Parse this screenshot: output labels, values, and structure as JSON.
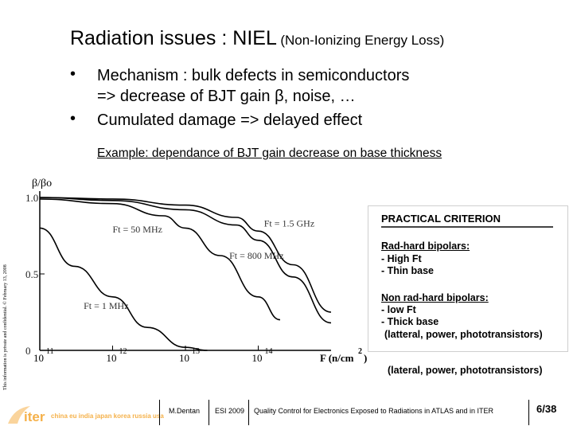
{
  "slide": {
    "title_main": "Radiation issues : NIEL",
    "title_sub": "(Non-Ionizing Energy Loss)",
    "bullets": [
      {
        "dot": "•",
        "lines": [
          "Mechanism : bulk defects in semiconductors",
          "=> decrease of BJT gain β, noise, …"
        ]
      },
      {
        "dot": "•",
        "lines": [
          "Cumulated damage => delayed effect"
        ]
      }
    ],
    "example_caption": "Example: dependance of BJT gain decrease on base thickness",
    "side_note": "This information is private and confidential. © February 13, 2008"
  },
  "chart_data": {
    "type": "line",
    "title": "",
    "ylabel": "β/βo",
    "xlabel": "F (n/cm²)",
    "xlabel_main": "F (n/cm",
    "xlabel_exp": "2",
    "xlabel_close": ")",
    "xscale": "log",
    "xlim": [
      100000000000.0,
      1000000000000000.0
    ],
    "ylim": [
      0,
      1.0
    ],
    "y_ticks": [
      "0",
      "0.5",
      "1.0"
    ],
    "x_ticks": [
      {
        "base": "10",
        "exp": "11",
        "value": 100000000000.0
      },
      {
        "base": "10",
        "exp": "12",
        "value": 1000000000000.0
      },
      {
        "base": "10",
        "exp": "13",
        "value": 10000000000000.0
      },
      {
        "base": "10",
        "exp": "14",
        "value": 100000000000000.0
      }
    ],
    "grid": false,
    "series": [
      {
        "name": "Ft = 1 MHz",
        "x": [
          100000000000.0,
          300000000000.0,
          1000000000000.0,
          3000000000000.0,
          10000000000000.0,
          20000000000000.0
        ],
        "y": [
          0.8,
          0.55,
          0.35,
          0.15,
          0.02,
          0.0
        ]
      },
      {
        "name": "Ft = 50 MHz",
        "x": [
          100000000000.0,
          1000000000000.0,
          5000000000000.0,
          10000000000000.0,
          30000000000000.0,
          100000000000000.0,
          200000000000000.0
        ],
        "y": [
          0.99,
          0.96,
          0.88,
          0.8,
          0.62,
          0.35,
          0.2
        ]
      },
      {
        "name": "Ft = 800 MHz",
        "x": [
          100000000000.0,
          1000000000000.0,
          10000000000000.0,
          50000000000000.0,
          100000000000000.0,
          300000000000000.0,
          1000000000000000.0
        ],
        "y": [
          1.0,
          0.98,
          0.92,
          0.82,
          0.72,
          0.48,
          0.18
        ]
      },
      {
        "name": "Ft = 1.5 GHz",
        "x": [
          100000000000.0,
          1000000000000.0,
          10000000000000.0,
          50000000000000.0,
          100000000000000.0,
          300000000000000.0,
          1000000000000000.0
        ],
        "y": [
          1.0,
          0.99,
          0.95,
          0.87,
          0.78,
          0.56,
          0.25
        ]
      }
    ],
    "curve_labels": [
      {
        "series": "Ft = 1 MHz",
        "text": "Ft = 1 MHz",
        "x": 400000000000.0,
        "y": 0.27
      },
      {
        "series": "Ft = 50 MHz",
        "text": "Ft = 50 MHz",
        "x": 1000000000000.0,
        "y": 0.77
      },
      {
        "series": "Ft = 800 MHz",
        "text": "Ft = 800 MHz",
        "x": 40000000000000.0,
        "y": 0.6
      },
      {
        "series": "Ft = 1.5 GHz",
        "text": "Ft = 1.5 GHz",
        "x": 120000000000000.0,
        "y": 0.81
      }
    ]
  },
  "criterion": {
    "title": "PRACTICAL CRITERION",
    "rad_hard_heading": "Rad-hard bipolars:",
    "rad_hard_items": [
      "- High Ft",
      "- Thin base"
    ],
    "non_rad_hard_heading": "Non rad-hard bipolars:",
    "non_rad_hard_items": [
      "- low Ft",
      "- Thick base"
    ],
    "note": "(latteral, power, phototransistors)"
  },
  "lateral_note": "(lateral, power, phototransistors)",
  "footer": {
    "logo_text": "iter",
    "countries": "china eu india japan korea russia usa",
    "author": "M.Dentan",
    "event": "ESI 2009",
    "talk_title": "Quality Control for Electronics Exposed to Radiations in ATLAS and in ITER",
    "page": "6/38",
    "logo_color": "#F5B14A"
  }
}
